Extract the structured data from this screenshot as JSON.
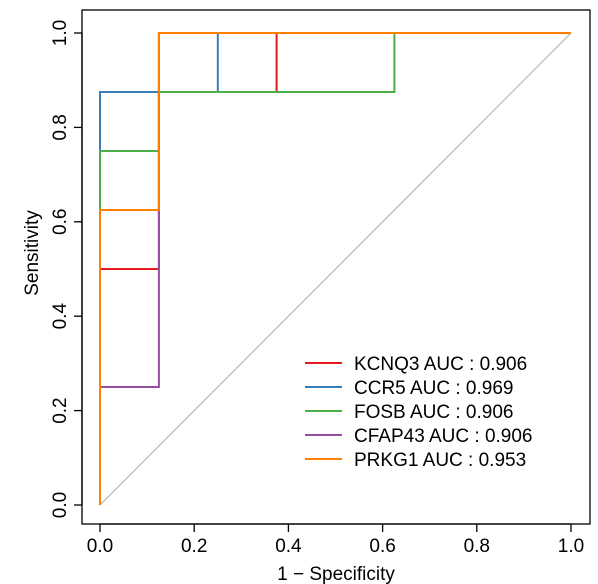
{
  "chart_data": {
    "type": "line",
    "title": "",
    "xlabel": "1 − Specificity",
    "ylabel": "Sensitivity",
    "xlim": [
      0.0,
      1.0
    ],
    "ylim": [
      0.0,
      1.0
    ],
    "x_ticks": [
      "0.0",
      "0.2",
      "0.4",
      "0.6",
      "0.8",
      "1.0"
    ],
    "y_ticks": [
      "0.0",
      "0.2",
      "0.4",
      "0.6",
      "0.8",
      "1.0"
    ],
    "grid": false,
    "legend_position": "bottom-right",
    "diagonal_color": "#bdbdbd",
    "series": [
      {
        "name": "KCNQ3 AUC : 0.906",
        "color": "#e41a1c",
        "x": [
          0,
          0,
          0.125,
          0.125,
          0.375,
          0.375,
          1.0
        ],
        "y": [
          0,
          0.5,
          0.5,
          0.875,
          0.875,
          1.0,
          1.0
        ]
      },
      {
        "name": "CCR5 AUC : 0.969",
        "color": "#377eb8",
        "x": [
          0,
          0,
          0.25,
          0.25,
          1.0
        ],
        "y": [
          0,
          0.875,
          0.875,
          1.0,
          1.0
        ]
      },
      {
        "name": "FOSB AUC : 0.906",
        "color": "#4daf4a",
        "x": [
          0,
          0,
          0.125,
          0.125,
          0.625,
          0.625,
          1.0
        ],
        "y": [
          0,
          0.75,
          0.75,
          0.875,
          0.875,
          1.0,
          1.0
        ]
      },
      {
        "name": "CFAP43 AUC : 0.906",
        "color": "#984ea3",
        "x": [
          0,
          0,
          0.125,
          0.125,
          1.0
        ],
        "y": [
          0,
          0.25,
          0.25,
          1.0,
          1.0
        ]
      },
      {
        "name": "PRKG1 AUC : 0.953",
        "color": "#ff7f00",
        "x": [
          0,
          0,
          0.125,
          0.125,
          1.0
        ],
        "y": [
          0,
          0.625,
          0.625,
          1.0,
          1.0
        ]
      }
    ]
  }
}
